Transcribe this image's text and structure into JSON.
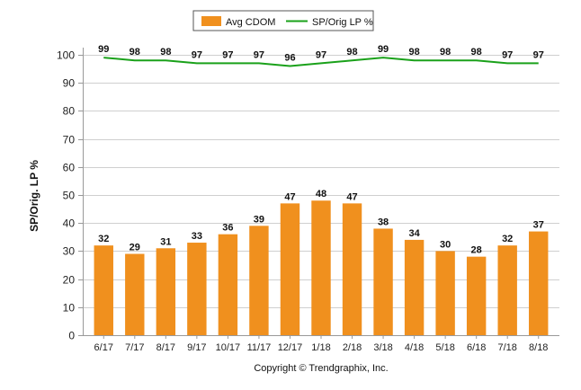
{
  "chart_data": {
    "type": "bar",
    "categories": [
      "6/17",
      "7/17",
      "8/17",
      "9/17",
      "10/17",
      "11/17",
      "12/17",
      "1/18",
      "2/18",
      "3/18",
      "4/18",
      "5/18",
      "6/18",
      "7/18",
      "8/18"
    ],
    "series": [
      {
        "name": "Avg CDOM",
        "type": "bar",
        "color": "#f0901e",
        "values": [
          32,
          29,
          31,
          33,
          36,
          39,
          47,
          48,
          47,
          38,
          34,
          30,
          28,
          32,
          37
        ]
      },
      {
        "name": "SP/Orig LP %",
        "type": "line",
        "color": "#1aa11a",
        "values": [
          99,
          98,
          98,
          97,
          97,
          97,
          96,
          97,
          98,
          99,
          98,
          98,
          98,
          97,
          97
        ]
      }
    ],
    "ylabel": "SP/Orig. LP %",
    "xlabel": "",
    "ylim": [
      0,
      100
    ],
    "yticks": [
      0,
      10,
      20,
      30,
      40,
      50,
      60,
      70,
      80,
      90,
      100
    ],
    "grid": true,
    "legend": "top-center"
  },
  "footer": {
    "credit": "Copyright © Trendgraphix, Inc."
  }
}
